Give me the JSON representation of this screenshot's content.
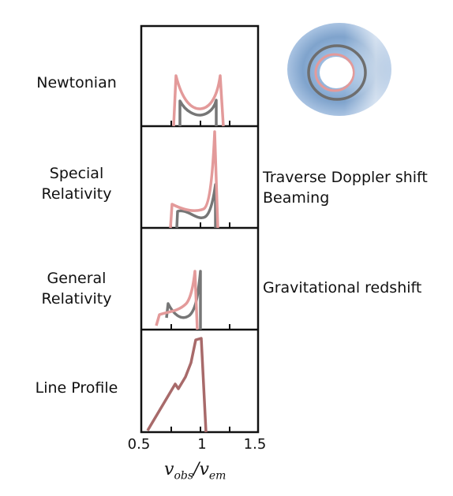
{
  "panels": [
    {
      "label_lines": [
        "Newtonian"
      ],
      "right_lines": []
    },
    {
      "label_lines": [
        "Special",
        "Relativity"
      ],
      "right_lines": [
        "Traverse Doppler shift",
        "Beaming"
      ]
    },
    {
      "label_lines": [
        "General",
        "Relativity"
      ],
      "right_lines": [
        "Gravitational redshift"
      ]
    },
    {
      "label_lines": [
        "Line Profile"
      ],
      "right_lines": []
    }
  ],
  "x_ticks": [
    "0.5",
    "1",
    "1.5"
  ],
  "axis": {
    "v": "v",
    "obs": "obs",
    "slash": "/",
    "v2": "v",
    "em": "em"
  },
  "colors": {
    "pink": "#e39a9a",
    "gray": "#767676",
    "brown": "#a86a6a",
    "disk_blue": "#7fa3cc"
  }
}
